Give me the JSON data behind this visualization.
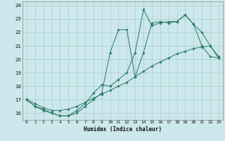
{
  "xlabel": "Humidex (Indice chaleur)",
  "bg_color": "#cce8ec",
  "grid_color": "#aacccc",
  "line_color": "#2e7d6e",
  "xlim": [
    -0.5,
    23.5
  ],
  "ylim": [
    15.5,
    24.3
  ],
  "yticks": [
    16,
    17,
    18,
    19,
    20,
    21,
    22,
    23,
    24
  ],
  "xticks": [
    0,
    1,
    2,
    3,
    4,
    5,
    6,
    7,
    8,
    9,
    10,
    11,
    12,
    13,
    14,
    15,
    16,
    17,
    18,
    19,
    20,
    21,
    22,
    23
  ],
  "line1_x": [
    0,
    1,
    2,
    3,
    4,
    5,
    6,
    7,
    8,
    9,
    10,
    11,
    12,
    13,
    14,
    15,
    16,
    17,
    18,
    19,
    20,
    21,
    22,
    23
  ],
  "line1_y": [
    17.0,
    16.7,
    16.4,
    16.2,
    16.2,
    16.3,
    16.5,
    16.8,
    17.1,
    17.4,
    17.7,
    18.0,
    18.3,
    18.7,
    19.1,
    19.5,
    19.8,
    20.1,
    20.4,
    20.6,
    20.8,
    20.9,
    21.0,
    20.1
  ],
  "line2_x": [
    0,
    1,
    2,
    3,
    4,
    5,
    6,
    7,
    8,
    9,
    10,
    11,
    12,
    13,
    14,
    15,
    16,
    17,
    18,
    19,
    20,
    21,
    22,
    23
  ],
  "line2_y": [
    17.0,
    16.5,
    16.2,
    16.0,
    15.8,
    15.8,
    16.0,
    16.5,
    17.0,
    17.5,
    20.5,
    22.2,
    22.2,
    18.7,
    20.5,
    22.7,
    22.8,
    22.7,
    22.8,
    23.3,
    22.6,
    22.0,
    21.0,
    20.2
  ],
  "line3_x": [
    0,
    1,
    2,
    3,
    4,
    5,
    6,
    7,
    8,
    9,
    10,
    11,
    12,
    13,
    14,
    15,
    16,
    17,
    18,
    19,
    20,
    21,
    22,
    23
  ],
  "line3_y": [
    17.0,
    16.5,
    16.3,
    16.0,
    15.8,
    15.8,
    16.2,
    16.7,
    17.5,
    18.1,
    18.0,
    18.5,
    19.0,
    20.5,
    23.7,
    22.5,
    22.7,
    22.8,
    22.8,
    23.3,
    22.6,
    21.0,
    20.2,
    20.1
  ]
}
